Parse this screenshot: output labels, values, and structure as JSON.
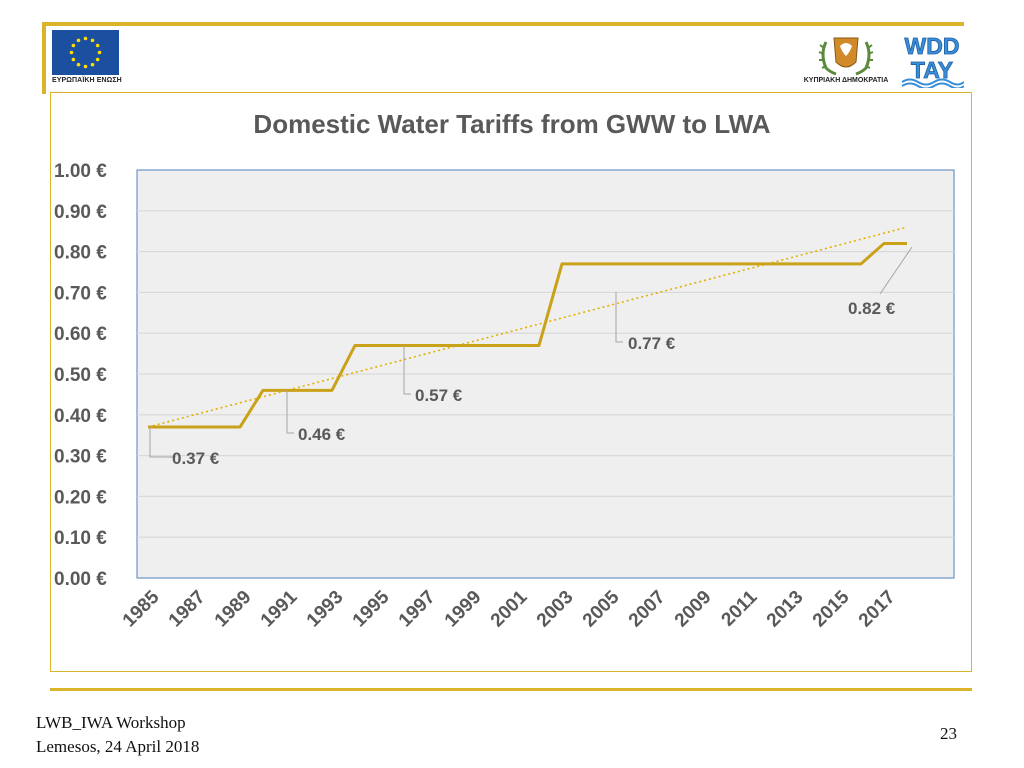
{
  "header": {
    "eu_caption": "ΕΥΡΩΠΑΪΚΗ ΕΝΩΣΗ",
    "cy_caption": "ΚΥΠΡΙΑΚΗ ΔΗΜΟΚΡΑΤΙΑ",
    "wdd_text_top": "WDD",
    "wdd_text_bottom": "TAY"
  },
  "footer": {
    "line1": "LWB_IWA Workshop",
    "line2": "Lemesos, 24 April 2018",
    "page_number": "23"
  },
  "colors": {
    "accent": "#dab42b",
    "series": "#c9a21a",
    "trend": "#e2b000",
    "plot_bg": "#efefef",
    "grid": "#d9d9d9",
    "axis_text": "#595959",
    "plot_border": "#4f81bd",
    "eu_blue": "#1b4f9f",
    "eu_star": "#ffdd00"
  },
  "chart_data": {
    "type": "line",
    "title": "Domestic Water Tariffs from GWW to LWA",
    "xlabel": "",
    "ylabel": "",
    "xlim": [
      1985,
      2018
    ],
    "ylim": [
      0,
      1.0
    ],
    "y_ticks": [
      {
        "value": 1.0,
        "label": "1.00 €"
      },
      {
        "value": 0.9,
        "label": "0.90 €"
      },
      {
        "value": 0.8,
        "label": "0.80 €"
      },
      {
        "value": 0.7,
        "label": "0.70 €"
      },
      {
        "value": 0.6,
        "label": "0.60 €"
      },
      {
        "value": 0.5,
        "label": "0.50 €"
      },
      {
        "value": 0.4,
        "label": "0.40 €"
      },
      {
        "value": 0.3,
        "label": "0.30 €"
      },
      {
        "value": 0.2,
        "label": "0.20 €"
      },
      {
        "value": 0.1,
        "label": "0.10 €"
      },
      {
        "value": 0.0,
        "label": "0.00 €"
      }
    ],
    "x_ticks": [
      "1985",
      "1987",
      "1989",
      "1991",
      "1993",
      "1995",
      "1997",
      "1999",
      "2001",
      "2003",
      "2005",
      "2007",
      "2009",
      "2011",
      "2013",
      "2015",
      "2017"
    ],
    "grid": true,
    "series": [
      {
        "name": "Domestic water tariff",
        "x": [
          1985,
          1989,
          1990,
          1993,
          1994,
          2002,
          2003,
          2015,
          2016,
          2017,
          2018
        ],
        "y": [
          0.37,
          0.37,
          0.46,
          0.46,
          0.57,
          0.57,
          0.77,
          0.77,
          0.77,
          0.82,
          0.82
        ]
      }
    ],
    "trendline": {
      "style": "dotted",
      "x": [
        1985,
        2018
      ],
      "y": [
        0.37,
        0.86
      ]
    },
    "annotations": [
      {
        "label": "0.37 €",
        "x": 1986,
        "y": 0.37
      },
      {
        "label": "0.46 €",
        "x": 1991,
        "y": 0.46
      },
      {
        "label": "0.57 €",
        "x": 1996,
        "y": 0.57
      },
      {
        "label": "0.77 €",
        "x": 2005,
        "y": 0.77
      },
      {
        "label": "0.82 €",
        "x": 2018,
        "y": 0.82
      }
    ]
  }
}
